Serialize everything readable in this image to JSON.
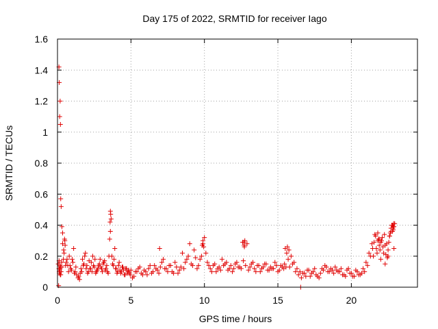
{
  "chart_data": {
    "type": "scatter",
    "title": "Day 175 of 2022, SRMTID for receiver Iago",
    "xlabel": "GPS time / hours",
    "ylabel": "SRMTID / TECUs",
    "xlim": [
      0,
      24.5
    ],
    "ylim": [
      0,
      1.6
    ],
    "xticks": [
      0,
      5,
      10,
      15,
      20
    ],
    "xtick_labels": [
      "0",
      "5",
      "10",
      "15",
      "20"
    ],
    "yticks": [
      0,
      0.2,
      0.4,
      0.6,
      0.8,
      1.0,
      1.2,
      1.4,
      1.6
    ],
    "ytick_labels": [
      "0",
      "0.2",
      "0.4",
      "0.6",
      "0.8",
      "1",
      "1.2",
      "1.4",
      "1.6"
    ],
    "grid": true,
    "marker": "+",
    "color": "#e00000",
    "series": [
      {
        "name": "SRMTID",
        "x": [
          0.05,
          0.1,
          0.12,
          0.15,
          0.18,
          0.2,
          0.22,
          0.25,
          0.3,
          0.35,
          0.4,
          0.45,
          0.5,
          0.6,
          0.7,
          0.8,
          0.9,
          1.0,
          1.1,
          1.2,
          1.3,
          1.4,
          1.5,
          1.6,
          1.7,
          1.8,
          1.9,
          2.0,
          2.1,
          2.2,
          2.3,
          2.4,
          2.5,
          2.6,
          2.7,
          2.8,
          2.9,
          3.0,
          3.1,
          3.2,
          3.3,
          3.4,
          3.5,
          3.55,
          3.6,
          3.65,
          3.7,
          3.8,
          3.9,
          4.0,
          4.1,
          4.2,
          4.3,
          4.4,
          4.5,
          4.6,
          4.7,
          4.8,
          4.9,
          5.0,
          5.2,
          5.4,
          5.6,
          5.8,
          6.0,
          6.2,
          6.4,
          6.6,
          6.8,
          6.95,
          7.1,
          7.3,
          7.5,
          7.7,
          7.9,
          8.1,
          8.3,
          8.5,
          8.7,
          8.9,
          9.0,
          9.1,
          9.3,
          9.5,
          9.7,
          9.9,
          10.0,
          10.2,
          10.4,
          10.6,
          10.8,
          11.0,
          11.2,
          11.4,
          11.6,
          11.8,
          12.0,
          12.2,
          12.4,
          12.6,
          12.7,
          12.8,
          13.0,
          13.2,
          13.4,
          13.6,
          13.8,
          14.0,
          14.2,
          14.4,
          14.6,
          14.8,
          15.0,
          15.2,
          15.4,
          15.5,
          15.6,
          15.7,
          15.8,
          16.0,
          16.2,
          16.4,
          16.6,
          16.8,
          17.0,
          17.2,
          17.4,
          17.6,
          17.8,
          18.0,
          18.2,
          18.4,
          18.6,
          18.8,
          19.0,
          19.2,
          19.4,
          19.6,
          19.8,
          20.0,
          20.2,
          20.4,
          20.6,
          20.8,
          21.0,
          21.2,
          21.4,
          21.5,
          21.6,
          21.7,
          21.8,
          21.9,
          22.0,
          22.1,
          22.2,
          22.3,
          22.4,
          22.5,
          22.6,
          22.7,
          22.8,
          22.9,
          0.08,
          0.15,
          0.22,
          0.28,
          0.12,
          0.35,
          0.55,
          0.65,
          0.75,
          0.85,
          0.95,
          1.05,
          1.15,
          1.25,
          1.45,
          1.55,
          1.65,
          1.75,
          1.85,
          1.95,
          2.05,
          2.15,
          2.25,
          2.35,
          2.45,
          2.55,
          2.65,
          2.75,
          2.85,
          2.95,
          3.05,
          3.15,
          3.25,
          3.35,
          3.45,
          3.75,
          3.85,
          3.95,
          4.05,
          4.15,
          4.25,
          4.35,
          4.45,
          4.55,
          4.65,
          4.75,
          4.85,
          4.95,
          5.1,
          5.3,
          5.5,
          5.7,
          5.9,
          6.1,
          6.3,
          6.5,
          6.7,
          6.9,
          7.0,
          7.2,
          7.4,
          7.6,
          7.8,
          8.0,
          8.2,
          8.4,
          8.6,
          8.8,
          9.2,
          9.4,
          9.6,
          9.8,
          9.95,
          10.1,
          10.3,
          10.5,
          10.7,
          10.9,
          11.1,
          11.3,
          11.5,
          11.7,
          11.9,
          12.1,
          12.3,
          12.5,
          12.65,
          12.75,
          12.9,
          13.1,
          13.3,
          13.5,
          13.7,
          13.9,
          14.1,
          14.3,
          14.5,
          14.7,
          14.9,
          15.1,
          15.3,
          15.45,
          15.55,
          15.65,
          15.75,
          15.9,
          16.1,
          16.3,
          16.5,
          16.7,
          16.9,
          17.1,
          17.3,
          17.5,
          17.7,
          17.9,
          18.1,
          18.3,
          18.5,
          18.7,
          18.9,
          19.1,
          19.3,
          19.5,
          19.7,
          19.9,
          20.1,
          20.3,
          20.5,
          20.7,
          20.9,
          21.1,
          21.3,
          21.45,
          21.55,
          21.65,
          21.75,
          21.85,
          21.95,
          22.05,
          22.15,
          22.25,
          22.35,
          22.45,
          22.55,
          22.65,
          22.75,
          22.85,
          22.95,
          16.55,
          0.1,
          0.13,
          0.17,
          0.19,
          0.21,
          0.14,
          0.11,
          0.16,
          3.58,
          3.62,
          3.6,
          9.85,
          9.9,
          12.68,
          12.72,
          22.8,
          22.85,
          22.88,
          22.9,
          22.82,
          21.8,
          21.9,
          22.0,
          22.3,
          22.5,
          22.6,
          22.7,
          0.25,
          0.3,
          0.42,
          0.48,
          0.52
        ],
        "y": [
          0.15,
          1.42,
          1.32,
          1.1,
          1.2,
          1.05,
          0.57,
          0.52,
          0.39,
          0.35,
          0.18,
          0.22,
          0.3,
          0.16,
          0.14,
          0.2,
          0.12,
          0.18,
          0.25,
          0.1,
          0.08,
          0.06,
          0.05,
          0.12,
          0.18,
          0.15,
          0.22,
          0.14,
          0.1,
          0.12,
          0.16,
          0.2,
          0.13,
          0.09,
          0.11,
          0.14,
          0.18,
          0.12,
          0.15,
          0.17,
          0.12,
          0.1,
          0.2,
          0.31,
          0.49,
          0.44,
          0.2,
          0.14,
          0.25,
          0.12,
          0.1,
          0.16,
          0.09,
          0.13,
          0.11,
          0.08,
          0.12,
          0.1,
          0.09,
          0.11,
          0.07,
          0.1,
          0.13,
          0.08,
          0.1,
          0.12,
          0.09,
          0.14,
          0.11,
          0.25,
          0.16,
          0.12,
          0.1,
          0.14,
          0.09,
          0.13,
          0.11,
          0.22,
          0.16,
          0.2,
          0.28,
          0.15,
          0.24,
          0.12,
          0.18,
          0.28,
          0.32,
          0.16,
          0.12,
          0.14,
          0.1,
          0.13,
          0.18,
          0.15,
          0.11,
          0.14,
          0.12,
          0.16,
          0.13,
          0.29,
          0.27,
          0.14,
          0.11,
          0.15,
          0.12,
          0.14,
          0.1,
          0.13,
          0.15,
          0.11,
          0.12,
          0.16,
          0.1,
          0.14,
          0.12,
          0.25,
          0.22,
          0.18,
          0.13,
          0.15,
          0.1,
          0.08,
          0.06,
          0.09,
          0.11,
          0.07,
          0.1,
          0.08,
          0.06,
          0.12,
          0.14,
          0.1,
          0.12,
          0.09,
          0.11,
          0.1,
          0.08,
          0.07,
          0.12,
          0.09,
          0.07,
          0.1,
          0.08,
          0.12,
          0.16,
          0.22,
          0.28,
          0.2,
          0.34,
          0.25,
          0.3,
          0.27,
          0.18,
          0.32,
          0.22,
          0.15,
          0.28,
          0.2,
          0.33,
          0.38,
          0.36,
          0.25,
          0.01,
          0.12,
          0.08,
          0.16,
          0.1,
          0.28,
          0.14,
          0.18,
          0.1,
          0.14,
          0.11,
          0.16,
          0.09,
          0.13,
          0.07,
          0.09,
          0.1,
          0.14,
          0.2,
          0.12,
          0.09,
          0.17,
          0.12,
          0.1,
          0.14,
          0.18,
          0.1,
          0.12,
          0.15,
          0.13,
          0.1,
          0.16,
          0.11,
          0.14,
          0.09,
          0.15,
          0.18,
          0.12,
          0.09,
          0.14,
          0.11,
          0.1,
          0.13,
          0.08,
          0.12,
          0.09,
          0.11,
          0.08,
          0.06,
          0.1,
          0.12,
          0.09,
          0.11,
          0.08,
          0.14,
          0.1,
          0.12,
          0.09,
          0.13,
          0.18,
          0.12,
          0.14,
          0.1,
          0.16,
          0.09,
          0.13,
          0.12,
          0.18,
          0.14,
          0.19,
          0.14,
          0.2,
          0.26,
          0.22,
          0.14,
          0.1,
          0.15,
          0.12,
          0.11,
          0.14,
          0.16,
          0.12,
          0.1,
          0.15,
          0.13,
          0.12,
          0.17,
          0.3,
          0.28,
          0.13,
          0.16,
          0.1,
          0.14,
          0.12,
          0.15,
          0.11,
          0.13,
          0.12,
          0.14,
          0.11,
          0.13,
          0.15,
          0.13,
          0.26,
          0.24,
          0.2,
          0.16,
          0.12,
          0.1,
          0.09,
          0.07,
          0.11,
          0.09,
          0.12,
          0.07,
          0.09,
          0.11,
          0.13,
          0.1,
          0.11,
          0.13,
          0.1,
          0.12,
          0.08,
          0.11,
          0.09,
          0.07,
          0.11,
          0.08,
          0.09,
          0.1,
          0.14,
          0.2,
          0.25,
          0.29,
          0.33,
          0.22,
          0.31,
          0.24,
          0.3,
          0.26,
          0.34,
          0.21,
          0.19,
          0.29,
          0.35,
          0.4,
          0.39,
          0.41,
          0.0,
          0.12,
          0.09,
          0.14,
          0.08,
          0.13,
          0.11,
          0.17,
          0.1,
          0.42,
          0.47,
          0.36,
          0.27,
          0.3,
          0.29,
          0.26,
          0.4,
          0.37,
          0.41,
          0.39,
          0.38,
          0.35,
          0.31,
          0.29,
          0.27,
          0.24,
          0.33,
          0.36,
          0.1,
          0.13,
          0.24,
          0.31,
          0.27
        ]
      }
    ]
  }
}
